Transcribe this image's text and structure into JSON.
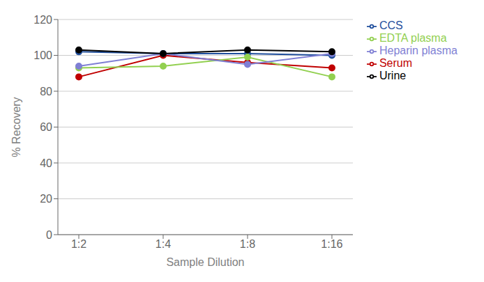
{
  "chart_data": {
    "type": "line",
    "x_label": "Sample Dilution",
    "y_label": "% Recovery",
    "categories": [
      "1:2",
      "1:4",
      "1:8",
      "1:16"
    ],
    "series": [
      {
        "name": "CCS",
        "color": "#1F4E9C",
        "marker": "circle",
        "values": [
          102,
          101,
          101,
          100
        ]
      },
      {
        "name": "Serum",
        "color": "#C00000",
        "marker": "circle",
        "values": [
          88,
          100,
          96,
          93
        ]
      },
      {
        "name": "EDTA plasma",
        "color": "#92D050",
        "marker": "circle",
        "values": [
          93,
          94,
          99,
          88
        ]
      },
      {
        "name": "Heparin plasma",
        "color": "#7F7FD4",
        "marker": "circle",
        "values": [
          94,
          101,
          95,
          101
        ]
      },
      {
        "name": "Urine",
        "color": "#000000",
        "marker": "circle",
        "values": [
          103,
          101,
          103,
          102
        ]
      }
    ],
    "ylim": [
      0,
      120
    ],
    "yticks": [
      0,
      20,
      40,
      60,
      80,
      100,
      120
    ],
    "grid": true,
    "legend": "right"
  }
}
